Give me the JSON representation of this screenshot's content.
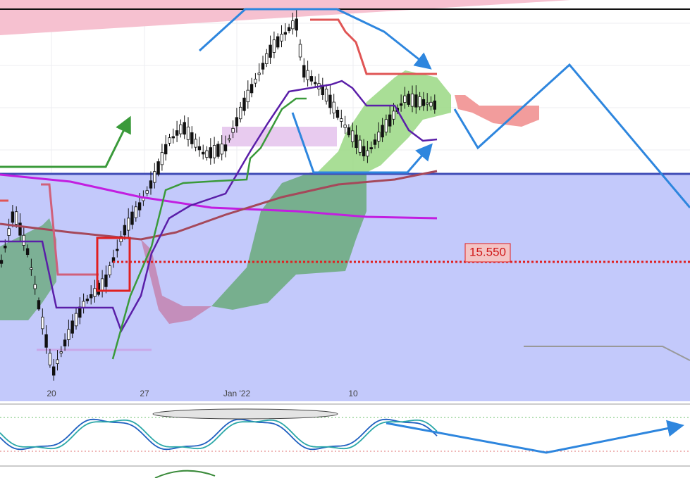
{
  "chart": {
    "x_labels": [
      "20",
      "27",
      "Jan '22",
      "10"
    ],
    "price_label": "15.550"
  }
}
